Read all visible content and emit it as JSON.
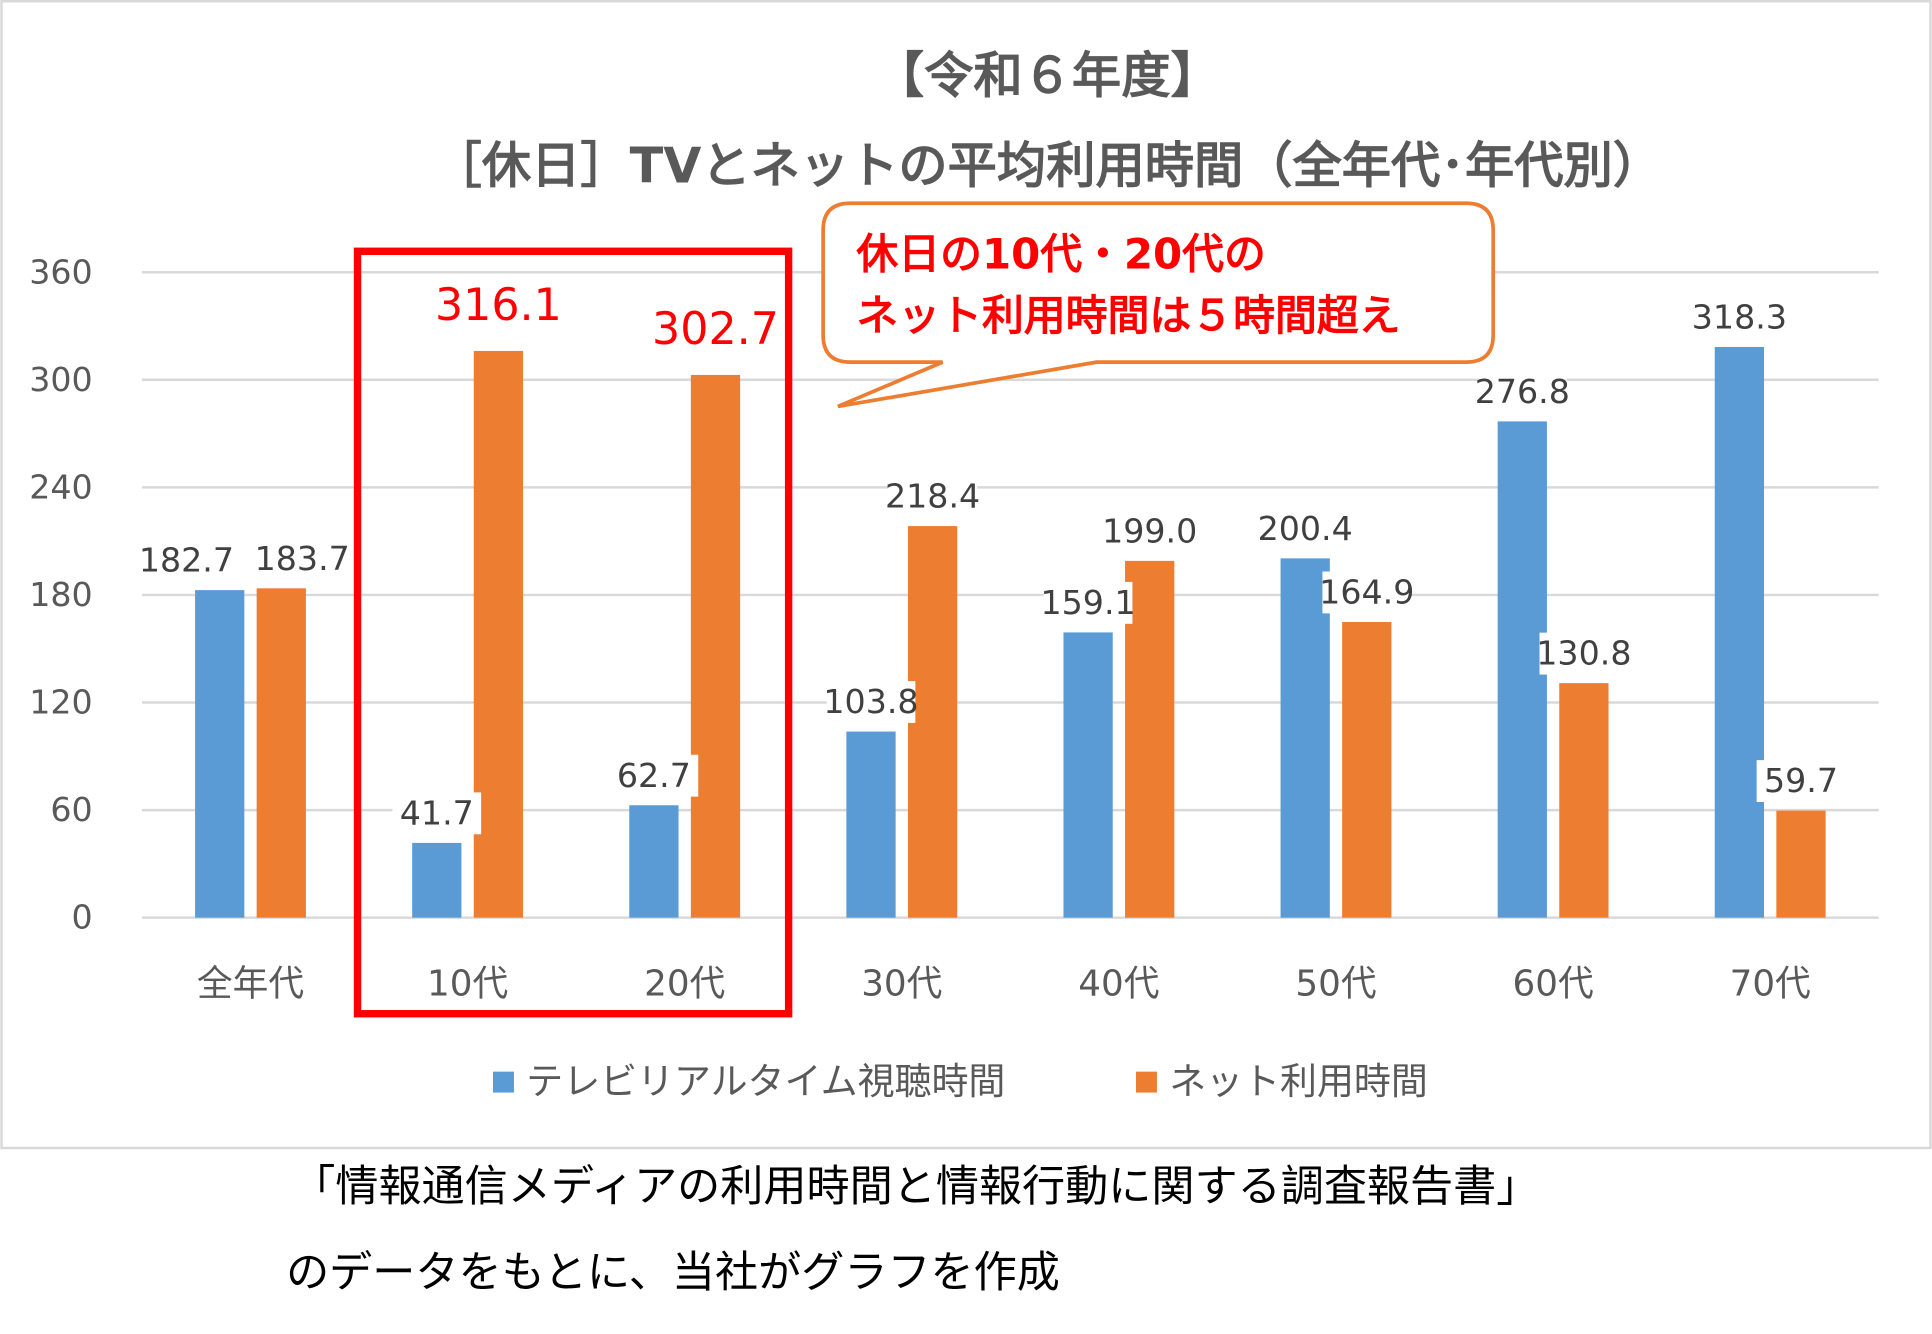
{
  "chart_data": {
    "type": "bar",
    "title": "【令和６年度】",
    "subtitle": "［休日］TVとネットの平均利用時間（全年代･年代別）",
    "categories": [
      "全年代",
      "10代",
      "20代",
      "30代",
      "40代",
      "50代",
      "60代",
      "70代"
    ],
    "series": [
      {
        "name": "テレビリアルタイム視聴時間",
        "color": "#5b9bd5",
        "values": [
          182.7,
          41.7,
          62.7,
          103.8,
          159.1,
          200.4,
          276.8,
          318.3
        ]
      },
      {
        "name": "ネット利用時間",
        "color": "#ed7d31",
        "values": [
          183.7,
          316.1,
          302.7,
          218.4,
          199.0,
          164.9,
          130.8,
          59.7
        ]
      }
    ],
    "value_labels": [
      [
        "182.7",
        "41.7",
        "62.7",
        "103.8",
        "159.1",
        "200.4",
        "276.8",
        "318.3"
      ],
      [
        "183.7",
        "316.1",
        "302.7",
        "218.4",
        "199.0",
        "164.9",
        "130.8",
        "59.7"
      ]
    ],
    "ylim": [
      0,
      360
    ],
    "yticks": [
      "0",
      "60",
      "120",
      "180",
      "240",
      "300",
      "360"
    ],
    "grid": true,
    "legend_position": "bottom",
    "highlight": {
      "categories": [
        "10代",
        "20代"
      ],
      "color": "#ff0000"
    },
    "annotation": {
      "lines": [
        "休日の10代・20代の",
        "ネット利用時間は５時間超え"
      ],
      "border_color": "#ed7d31",
      "text_color": "#ff0000"
    }
  },
  "source_note": {
    "line1": "「情報通信メディアの利用時間と情報行動に関する調査報告書」",
    "line2": "のデータをもとに、当社がグラフを作成"
  }
}
